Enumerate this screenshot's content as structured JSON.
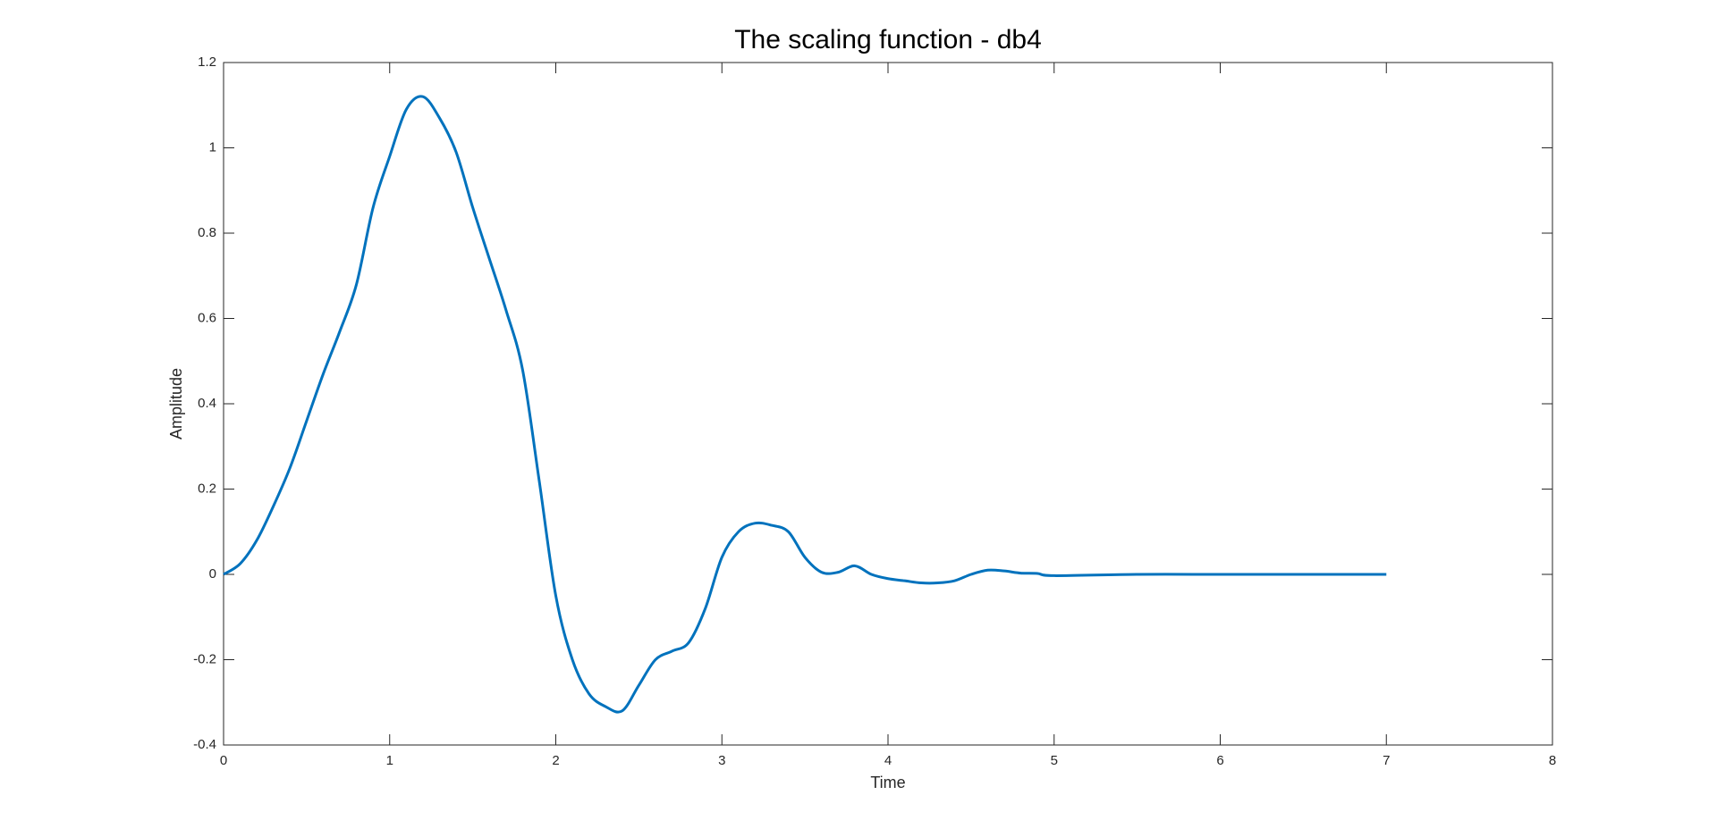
{
  "chart_data": {
    "type": "line",
    "title": "The scaling function - db4",
    "x_label": "Time",
    "y_label": "Amplitude",
    "x": [
      0,
      0.1,
      0.2,
      0.3,
      0.4,
      0.5,
      0.6,
      0.7,
      0.8,
      0.9,
      1.0,
      1.1,
      1.2,
      1.3,
      1.4,
      1.5,
      1.6,
      1.7,
      1.8,
      1.9,
      2.0,
      2.1,
      2.2,
      2.3,
      2.4,
      2.5,
      2.6,
      2.7,
      2.8,
      2.9,
      3.0,
      3.1,
      3.2,
      3.3,
      3.4,
      3.5,
      3.6,
      3.7,
      3.8,
      3.9,
      4.0,
      4.1,
      4.2,
      4.3,
      4.4,
      4.5,
      4.6,
      4.7,
      4.8,
      4.9,
      5.0,
      5.5,
      6.0,
      6.5,
      7.0
    ],
    "series": [
      {
        "name": "db4",
        "color": "#0072bd",
        "values": [
          0,
          0.025,
          0.08,
          0.16,
          0.25,
          0.36,
          0.47,
          0.57,
          0.68,
          0.86,
          0.98,
          1.09,
          1.12,
          1.07,
          0.99,
          0.86,
          0.74,
          0.62,
          0.48,
          0.22,
          -0.05,
          -0.2,
          -0.28,
          -0.31,
          -0.32,
          -0.26,
          -0.2,
          -0.18,
          -0.16,
          -0.08,
          0.04,
          0.1,
          0.12,
          0.115,
          0.1,
          0.04,
          0.005,
          0.005,
          0.02,
          0.0,
          -0.01,
          -0.015,
          -0.02,
          -0.02,
          -0.015,
          0.0,
          0.01,
          0.008,
          0.003,
          0.002,
          -0.003,
          0,
          0,
          0,
          0
        ]
      }
    ],
    "xlim": [
      0,
      8
    ],
    "xticks": [
      0,
      1,
      2,
      3,
      4,
      5,
      6,
      7,
      8
    ],
    "ylim": [
      -0.4,
      1.2
    ],
    "yticks": [
      -0.4,
      -0.2,
      0,
      0.2,
      0.4,
      0.6,
      0.8,
      1,
      1.2
    ],
    "grid": false
  }
}
